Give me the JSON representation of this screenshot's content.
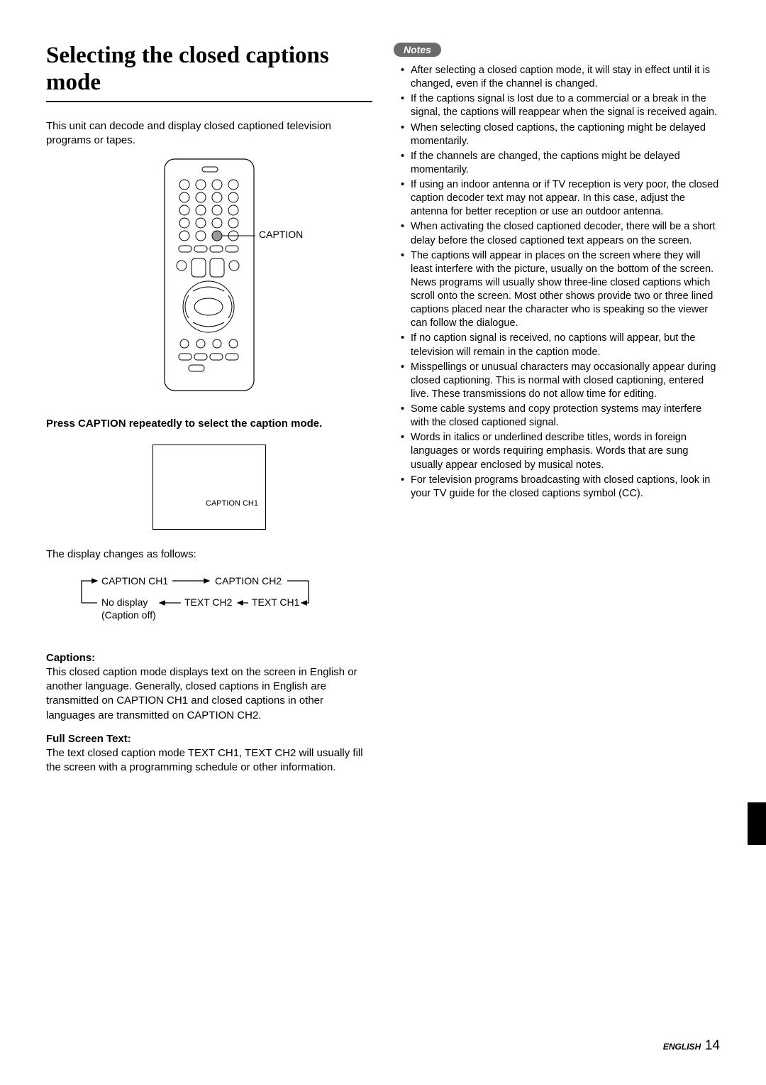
{
  "title": "Selecting the closed captions mode",
  "intro": "This unit can decode and display closed captioned television programs or tapes.",
  "remote_label": "CAPTION",
  "instruction": "Press CAPTION repeatedly to select the caption mode.",
  "screen_text": "CAPTION CH1",
  "display_changes": "The display changes as follows:",
  "flow": {
    "cc1": "CAPTION CH1",
    "cc2": "CAPTION CH2",
    "nodisp": "No display",
    "off": "(Caption off)",
    "text2": "TEXT CH2",
    "text1": "TEXT CH1"
  },
  "captions_head": "Captions:",
  "captions_body": "This closed caption mode displays text on the screen in English or another language. Generally, closed captions in English are transmitted on CAPTION CH1 and closed captions in other languages are transmitted on CAPTION CH2.",
  "fullscreen_head": "Full Screen Text:",
  "fullscreen_body": "The text closed caption mode TEXT CH1, TEXT CH2 will usually fill the screen with a programming schedule or other information.",
  "notes_label": "Notes",
  "notes": [
    "After selecting a closed caption mode, it will stay in effect until it is changed, even if the channel is changed.",
    "If the captions signal is lost due to a commercial or a break in the signal, the captions will reappear when the signal is received again.",
    "When selecting closed captions, the captioning might be delayed momentarily.",
    "If the channels are changed, the captions might be delayed momentarily.",
    "If using an indoor antenna or if TV reception is very poor, the closed caption decoder text may not appear. In this case, adjust the antenna for better reception or use an outdoor antenna.",
    "When activating the closed captioned decoder, there will be a short delay before the closed captioned text appears on the screen.",
    "The captions will appear in places on the screen where they will least interfere with the picture, usually on the bottom of the screen. News programs will usually show three-line closed captions which scroll onto the screen. Most other shows provide two or three lined captions placed near the character who is speaking so the viewer can follow the dialogue.",
    "If no caption signal is received, no captions will appear, but the television will remain in the caption mode.",
    "Misspellings or unusual characters may occasionally appear during closed captioning. This is normal with closed captioning, entered live. These transmissions do not allow time for editing.",
    "Some cable systems and copy protection systems may interfere with the closed captioned signal.",
    "Words in italics or underlined describe titles, words in foreign languages or words requiring emphasis. Words that are sung usually appear enclosed by musical notes.",
    "For television programs broadcasting with closed captions, look in your TV guide for the closed captions symbol (CC)."
  ],
  "footer_lang": "ENGLISH",
  "footer_page": "14"
}
